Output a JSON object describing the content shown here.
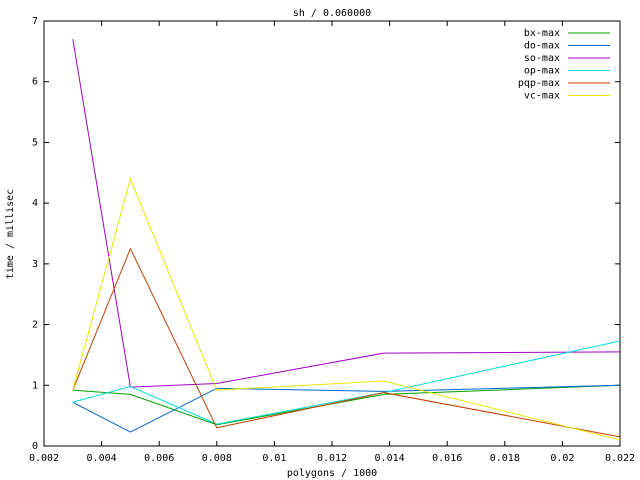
{
  "chart_data": {
    "type": "line",
    "title": "sh / 0.060000",
    "x_label": "polygons / 1000",
    "y_label": "time / millisec",
    "x": [
      0.003,
      0.005,
      0.008,
      0.0138,
      0.022
    ],
    "series": [
      {
        "name": "bx-max",
        "color": "#00a000",
        "values": [
          0.92,
          0.85,
          0.35,
          0.85,
          1.0
        ]
      },
      {
        "name": "do-max",
        "color": "#0066cc",
        "values": [
          0.72,
          0.23,
          0.95,
          0.9,
          1.0
        ]
      },
      {
        "name": "so-max",
        "color": "#a000c0",
        "values": [
          6.7,
          0.97,
          1.03,
          1.53,
          1.55
        ]
      },
      {
        "name": "op-max",
        "color": "#00dddd",
        "values": [
          0.72,
          0.98,
          0.36,
          0.88,
          1.73
        ]
      },
      {
        "name": "pqp-max",
        "color": "#c04000",
        "values": [
          0.92,
          3.25,
          0.3,
          0.88,
          0.15
        ]
      },
      {
        "name": "vc-max",
        "color": "#e8e800",
        "values": [
          0.92,
          4.4,
          0.92,
          1.07,
          0.1
        ]
      }
    ],
    "xlim": [
      0.002,
      0.022
    ],
    "xticks": [
      0.002,
      0.004,
      0.006,
      0.008,
      0.01,
      0.012,
      0.014,
      0.016,
      0.018,
      0.02,
      0.022
    ],
    "ylim": [
      0,
      7
    ],
    "yticks": [
      0,
      1,
      2,
      3,
      4,
      5,
      6,
      7
    ],
    "grid": false,
    "legend": "top-right"
  }
}
